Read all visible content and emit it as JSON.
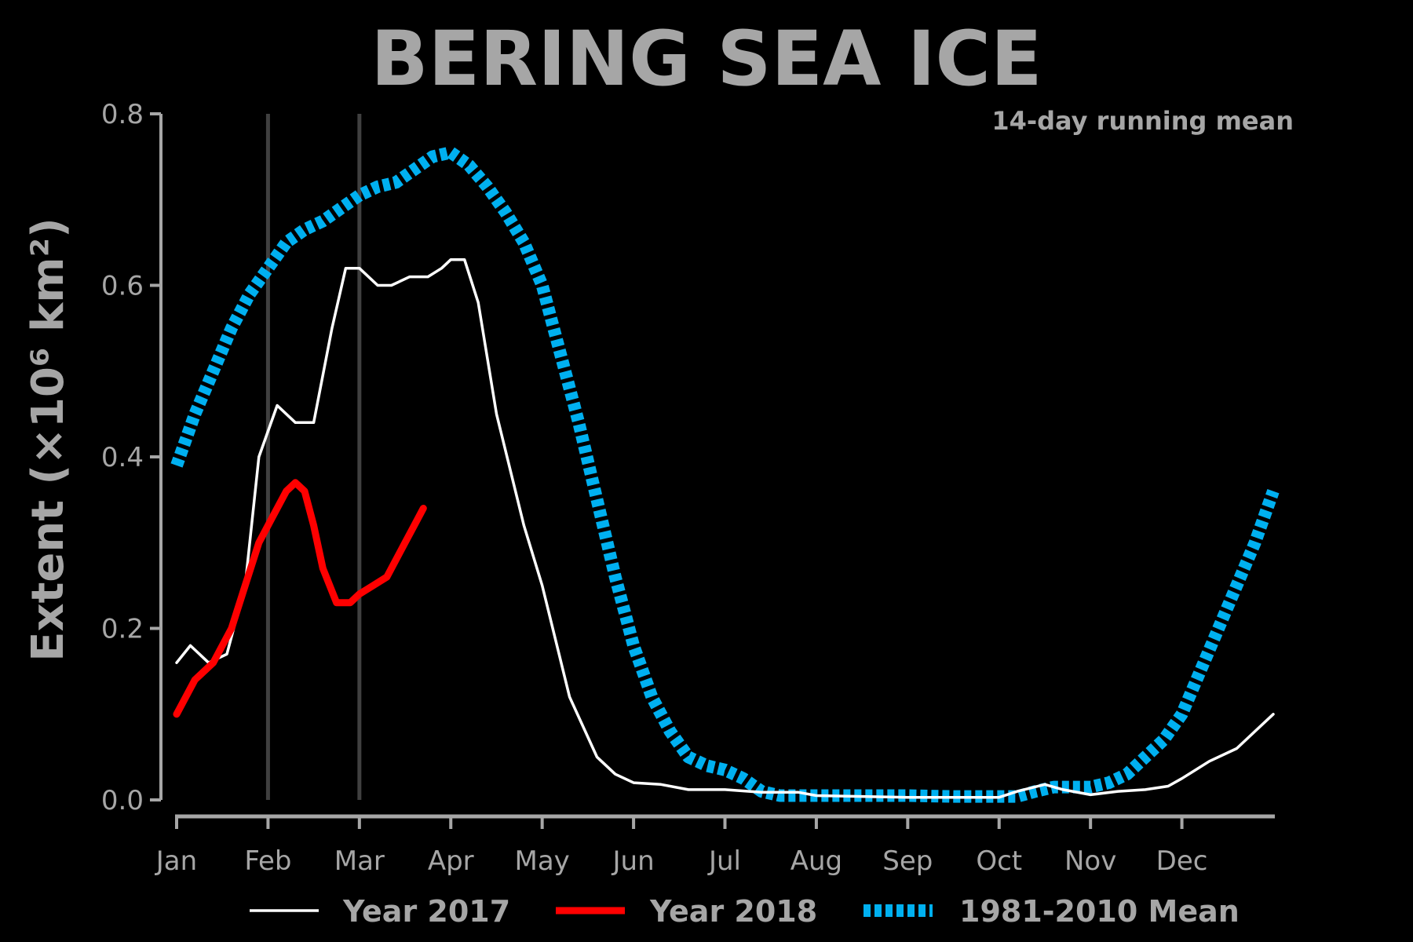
{
  "chart_data": {
    "type": "line",
    "title": "BERING SEA ICE",
    "ylabel": "Extent (×10⁶ km²)",
    "annotation": "14-day running mean",
    "ylim": [
      0,
      0.8
    ],
    "xlim": [
      0,
      12
    ],
    "yticks": [
      0.0,
      0.2,
      0.4,
      0.6,
      0.8
    ],
    "ytick_labels": [
      "0.0",
      "0.2",
      "0.4",
      "0.6",
      "0.8"
    ],
    "xtick_labels": [
      "Jan",
      "Feb",
      "Mar",
      "Apr",
      "May",
      "Jun",
      "Jul",
      "Aug",
      "Sep",
      "Oct",
      "Nov",
      "Dec"
    ],
    "grid": false,
    "vlines": [
      1.0,
      2.0
    ],
    "legend_position": "bottom",
    "colors": {
      "background": "#000000",
      "text": "#a6a6a6",
      "year2017": "#ffffff",
      "year2018": "#ff0000",
      "mean": "#00b0f0",
      "vline": "#404040"
    },
    "series": [
      {
        "name": "Year 2017",
        "style": "thin-solid",
        "x": [
          0,
          0.15,
          0.35,
          0.55,
          0.75,
          0.9,
          1.1,
          1.3,
          1.5,
          1.7,
          1.85,
          2.0,
          2.2,
          2.35,
          2.55,
          2.75,
          2.9,
          3.0,
          3.15,
          3.3,
          3.5,
          3.8,
          4.0,
          4.3,
          4.6,
          4.8,
          5.0,
          5.3,
          5.6,
          6.0,
          6.4,
          6.8,
          7.0,
          7.5,
          8.0,
          8.5,
          9.0,
          9.2,
          9.5,
          9.7,
          10.0,
          10.3,
          10.6,
          10.85,
          11.0,
          11.3,
          11.6,
          11.8,
          12.0
        ],
        "y": [
          0.16,
          0.18,
          0.16,
          0.17,
          0.25,
          0.4,
          0.46,
          0.44,
          0.44,
          0.55,
          0.62,
          0.62,
          0.6,
          0.6,
          0.61,
          0.61,
          0.62,
          0.63,
          0.63,
          0.58,
          0.45,
          0.32,
          0.25,
          0.12,
          0.05,
          0.03,
          0.02,
          0.018,
          0.012,
          0.012,
          0.009,
          0.009,
          0.005,
          0.004,
          0.003,
          0.003,
          0.003,
          0.01,
          0.018,
          0.012,
          0.006,
          0.01,
          0.012,
          0.016,
          0.025,
          0.045,
          0.06,
          0.08,
          0.1
        ]
      },
      {
        "name": "Year 2018",
        "style": "thick-solid",
        "x": [
          0,
          0.2,
          0.4,
          0.6,
          0.75,
          0.9,
          1.05,
          1.2,
          1.3,
          1.4,
          1.5,
          1.6,
          1.75,
          1.9,
          2.0,
          2.15,
          2.3,
          2.4,
          2.5,
          2.6,
          2.7
        ],
        "y": [
          0.1,
          0.14,
          0.16,
          0.2,
          0.25,
          0.3,
          0.33,
          0.36,
          0.37,
          0.36,
          0.32,
          0.27,
          0.23,
          0.23,
          0.24,
          0.25,
          0.26,
          0.28,
          0.3,
          0.32,
          0.34
        ]
      },
      {
        "name": "1981-2010 Mean",
        "style": "thick-dashed",
        "x": [
          0,
          0.2,
          0.4,
          0.6,
          0.8,
          1.0,
          1.2,
          1.4,
          1.6,
          1.8,
          2.0,
          2.2,
          2.4,
          2.6,
          2.8,
          3.0,
          3.2,
          3.4,
          3.6,
          3.8,
          4.0,
          4.2,
          4.4,
          4.6,
          4.8,
          5.0,
          5.2,
          5.4,
          5.6,
          5.8,
          6.0,
          6.2,
          6.4,
          6.6,
          7.0,
          8.0,
          8.5,
          9.0,
          9.2,
          9.4,
          9.6,
          9.8,
          10.0,
          10.2,
          10.4,
          10.6,
          10.8,
          11.0,
          11.2,
          11.4,
          11.6,
          11.8,
          12.0
        ],
        "y": [
          0.39,
          0.45,
          0.5,
          0.55,
          0.59,
          0.62,
          0.65,
          0.665,
          0.675,
          0.69,
          0.705,
          0.715,
          0.72,
          0.735,
          0.75,
          0.755,
          0.74,
          0.715,
          0.685,
          0.65,
          0.6,
          0.52,
          0.44,
          0.35,
          0.26,
          0.18,
          0.12,
          0.08,
          0.05,
          0.04,
          0.035,
          0.025,
          0.01,
          0.005,
          0.005,
          0.005,
          0.004,
          0.004,
          0.004,
          0.01,
          0.015,
          0.015,
          0.015,
          0.02,
          0.03,
          0.05,
          0.07,
          0.1,
          0.15,
          0.2,
          0.25,
          0.3,
          0.36
        ]
      }
    ]
  }
}
